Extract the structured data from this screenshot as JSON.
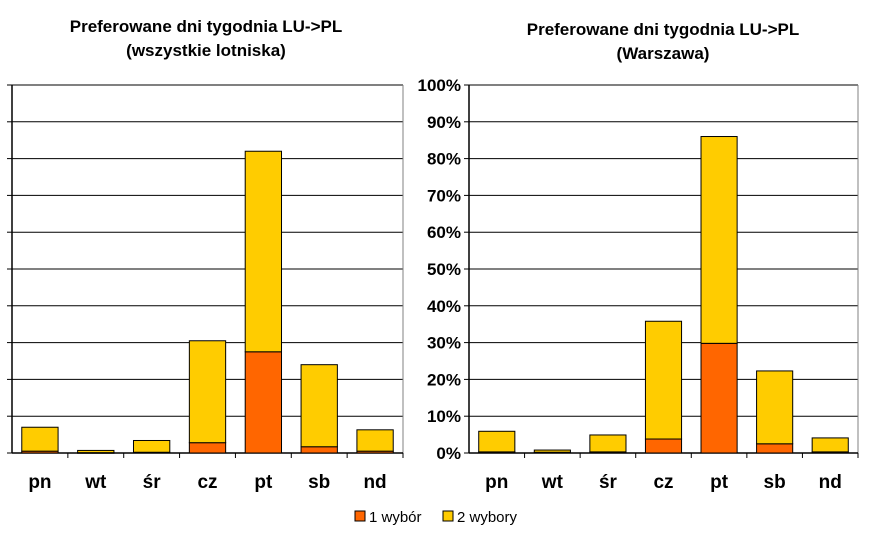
{
  "legend": {
    "items": [
      "1 wybór",
      "2 wybory"
    ]
  },
  "chart_data": [
    {
      "type": "bar",
      "stacked": true,
      "title": "Preferowane dni tygodnia LU->PL",
      "subtitle": "(wszystkie lotniska)",
      "categories": [
        "pn",
        "wt",
        "śr",
        "cz",
        "pt",
        "sb",
        "nd"
      ],
      "series": [
        {
          "name": "1 wybór",
          "color": "#ff6600",
          "values": [
            0.5,
            0.1,
            0.2,
            2.8,
            27.5,
            1.7,
            0.5
          ]
        },
        {
          "name": "2 wybory",
          "color": "#ffcc00",
          "values": [
            6.5,
            0.6,
            3.2,
            27.7,
            54.5,
            22.3,
            5.8
          ]
        }
      ],
      "ylim": [
        0,
        100
      ],
      "yticks": [
        "",
        "",
        "",
        "",
        "",
        "",
        "",
        "",
        "",
        "",
        ""
      ],
      "grid": true
    },
    {
      "type": "bar",
      "stacked": true,
      "title": "Preferowane dni tygodnia LU->PL",
      "subtitle": "(Warszawa)",
      "categories": [
        "pn",
        "wt",
        "śr",
        "cz",
        "pt",
        "sb",
        "nd"
      ],
      "series": [
        {
          "name": "1 wybór",
          "color": "#ff6600",
          "values": [
            0.3,
            0.2,
            0.3,
            3.8,
            29.8,
            2.5,
            0.3
          ]
        },
        {
          "name": "2 wybory",
          "color": "#ffcc00",
          "values": [
            5.6,
            0.6,
            4.6,
            32.0,
            56.2,
            19.8,
            3.8
          ]
        }
      ],
      "ylim": [
        0,
        100
      ],
      "yticks": [
        "0%",
        "10%",
        "20%",
        "30%",
        "40%",
        "50%",
        "60%",
        "70%",
        "80%",
        "90%",
        "100%"
      ],
      "grid": true
    }
  ]
}
